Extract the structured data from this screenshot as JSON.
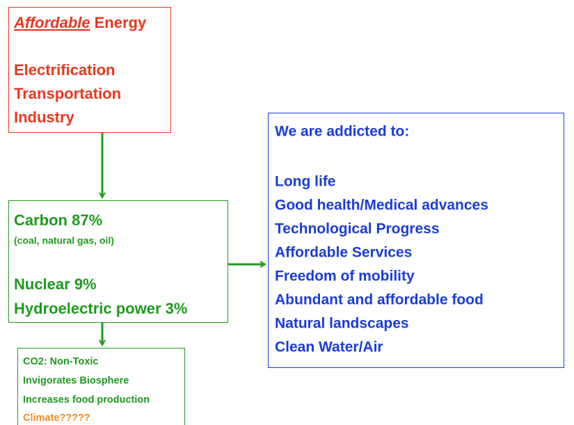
{
  "energy_box": {
    "title_emphasis": "Affordable",
    "title_rest": "Energy",
    "items": [
      "Electrification",
      "Transportation",
      "Industry"
    ]
  },
  "sources_box": {
    "carbon": "Carbon 87%",
    "carbon_note": "(coal, natural gas, oil)",
    "nuclear": "Nuclear 9%",
    "hydro": "Hydroelectric power 3%"
  },
  "co2_box": {
    "lines": [
      "CO2:  Non-Toxic",
      "Invigorates Biosphere",
      "Increases food production"
    ],
    "question": "Climate?????"
  },
  "addiction_box": {
    "heading": "We are addicted to:",
    "items": [
      "Long life",
      "Good health/Medical advances",
      "Technological Progress",
      "Affordable Services",
      "Freedom of mobility",
      "Abundant and affordable food",
      "Natural landscapes",
      "Clean Water/Air"
    ]
  }
}
